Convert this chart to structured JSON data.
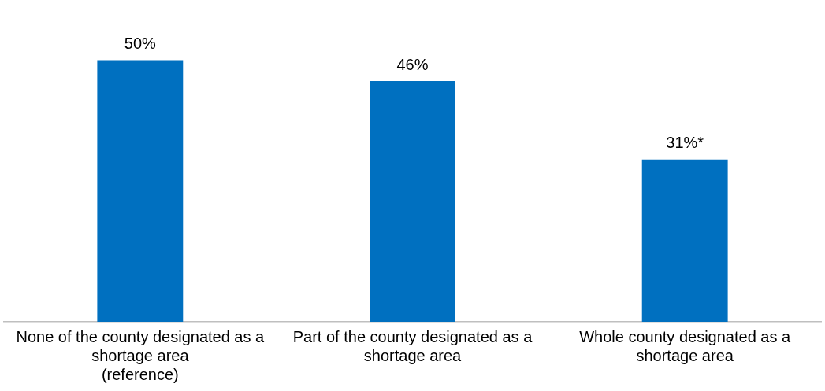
{
  "chart_data": {
    "type": "bar",
    "categories": [
      "None of the county designated as a shortage area\n(reference)",
      "Part of the county designated as a shortage area",
      "Whole county designated as a shortage area"
    ],
    "values": [
      50,
      46,
      31
    ],
    "color": "#0070c0",
    "value_labels": [
      "50%",
      "46%",
      "31%*"
    ],
    "grid": false,
    "legend": false
  }
}
